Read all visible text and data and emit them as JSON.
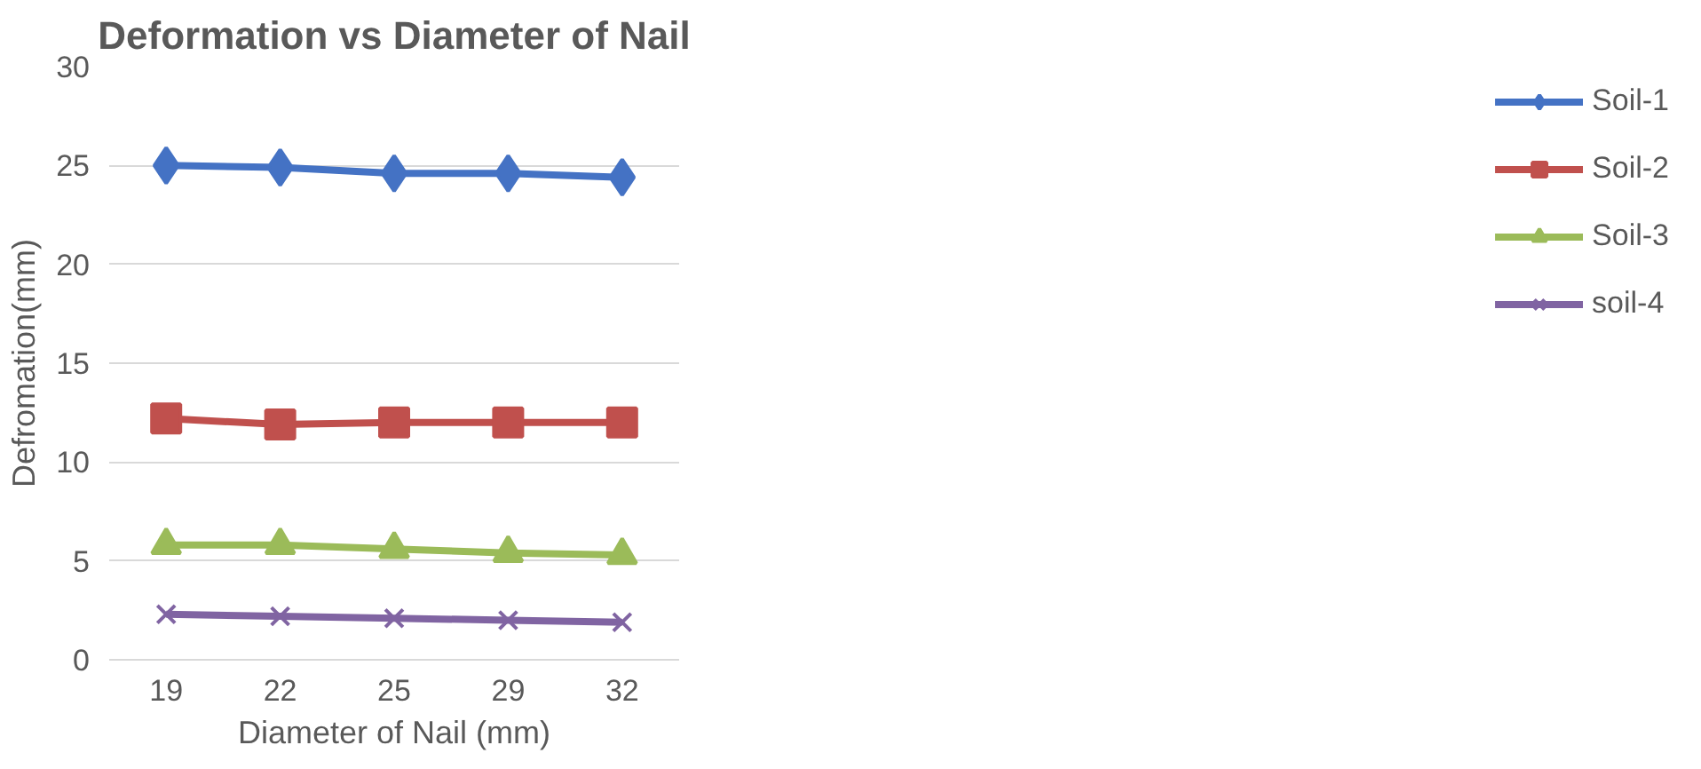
{
  "chart_data": {
    "type": "line",
    "title": "Deformation vs Diameter of Nail",
    "xlabel": "Diameter of Nail (mm)",
    "ylabel": "Defromation(mm)",
    "categories": [
      "19",
      "22",
      "25",
      "29",
      "32"
    ],
    "ylim": [
      0,
      30
    ],
    "yticks": [
      0,
      5,
      10,
      15,
      20,
      25,
      30
    ],
    "grid": "y",
    "legend": "right",
    "line_style": "solid",
    "series": [
      {
        "name": "Soil-1",
        "color": "#4472c4",
        "marker": "diamond",
        "values": [
          25.0,
          24.9,
          24.6,
          24.6,
          24.4
        ]
      },
      {
        "name": "Soil-2",
        "color": "#c0504d",
        "marker": "square",
        "values": [
          12.2,
          11.9,
          12.0,
          12.0,
          12.0
        ]
      },
      {
        "name": "Soil-3",
        "color": "#9bbb59",
        "marker": "triangle",
        "values": [
          5.8,
          5.8,
          5.6,
          5.4,
          5.3
        ]
      },
      {
        "name": "soil-4",
        "color": "#8064a2",
        "marker": "cross",
        "values": [
          2.3,
          2.2,
          2.1,
          2.0,
          1.9
        ]
      }
    ]
  }
}
